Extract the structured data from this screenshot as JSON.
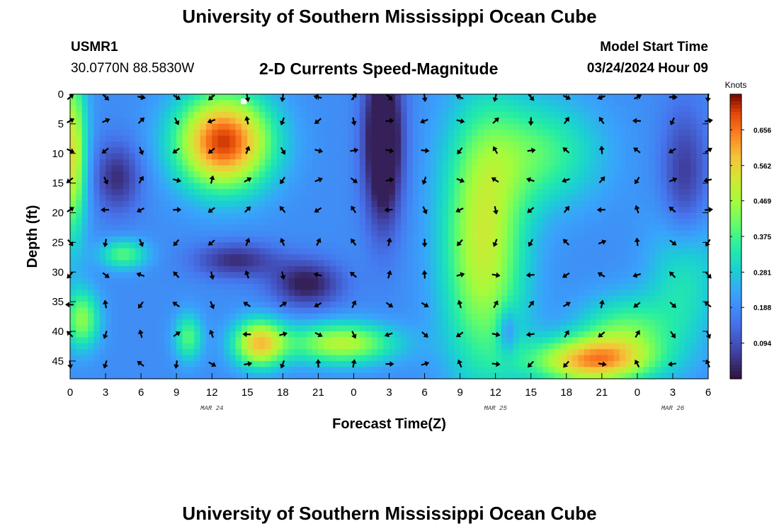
{
  "header": {
    "title": "University of Southern Mississippi Ocean Cube",
    "station": "USMR1",
    "coords": "30.0770N  88.5830W",
    "subtitle": "2-D Currents Speed-Magnitude",
    "model_start_label": "Model Start Time",
    "model_start_value": "03/24/2024 Hour 09"
  },
  "footer": {
    "title": "University of Southern Mississippi Ocean Cube"
  },
  "chart_data": {
    "type": "heatmap",
    "title": "2-D Currents Speed-Magnitude",
    "xlabel": "Forecast Time(Z)",
    "ylabel": "Depth (ft)",
    "x_ticks": [
      "0",
      "3",
      "6",
      "9",
      "12",
      "15",
      "18",
      "21",
      "0",
      "3",
      "6",
      "9",
      "12",
      "15",
      "18",
      "21",
      "0",
      "3",
      "6"
    ],
    "x_range_hours": [
      0,
      54
    ],
    "day_labels": [
      {
        "label": "MAR 24",
        "hour": 12
      },
      {
        "label": "MAR 25",
        "hour": 36
      },
      {
        "label": "MAR 26",
        "hour": 51
      }
    ],
    "y_ticks": [
      "0",
      "5",
      "10",
      "15",
      "20",
      "25",
      "30",
      "35",
      "40",
      "45"
    ],
    "y_range_ft": [
      0,
      48
    ],
    "colorbar": {
      "unit": "Knots",
      "ticks": [
        "0.094",
        "0.188",
        "0.281",
        "0.375",
        "0.469",
        "0.562",
        "0.656"
      ],
      "range": [
        0.0,
        0.75
      ]
    },
    "speed_blobs": [
      {
        "t": 0.2,
        "d": 10,
        "st": 1.2,
        "sd": 14,
        "a": 0.35
      },
      {
        "t": 13,
        "d": 8,
        "st": 4.0,
        "sd": 8,
        "a": 0.52
      },
      {
        "t": 4.5,
        "d": 27,
        "st": 2.0,
        "sd": 2.5,
        "a": 0.2
      },
      {
        "t": 1,
        "d": 38,
        "st": 1.5,
        "sd": 5,
        "a": 0.25
      },
      {
        "t": 10,
        "d": 41,
        "st": 1.2,
        "sd": 4,
        "a": 0.2
      },
      {
        "t": 16,
        "d": 42,
        "st": 2.2,
        "sd": 4,
        "a": 0.38
      },
      {
        "t": 23,
        "d": 42,
        "st": 4.5,
        "sd": 3.5,
        "a": 0.3
      },
      {
        "t": 35,
        "d": 25,
        "st": 3.5,
        "sd": 22,
        "a": 0.32
      },
      {
        "t": 40,
        "d": 10,
        "st": 5.0,
        "sd": 9,
        "a": 0.18
      },
      {
        "t": 44,
        "d": 45,
        "st": 5.0,
        "sd": 4,
        "a": 0.4
      },
      {
        "t": 47,
        "d": 40,
        "st": 4.0,
        "sd": 6,
        "a": 0.2
      },
      {
        "t": 52,
        "d": 30,
        "st": 3.0,
        "sd": 12,
        "a": 0.15
      },
      {
        "t": 26.5,
        "d": 8,
        "st": 1.6,
        "sd": 14,
        "a": -0.3
      },
      {
        "t": 4,
        "d": 14,
        "st": 2.0,
        "sd": 6,
        "a": -0.15
      },
      {
        "t": 14,
        "d": 28,
        "st": 3.5,
        "sd": 3,
        "a": -0.15
      },
      {
        "t": 20,
        "d": 32,
        "st": 3.0,
        "sd": 4,
        "a": -0.18
      },
      {
        "t": 52,
        "d": 15,
        "st": 2.0,
        "sd": 12,
        "a": -0.15
      },
      {
        "t": 37,
        "d": 40,
        "st": 0.8,
        "sd": 4,
        "a": -0.12
      }
    ],
    "arrow_grid": {
      "hours": [
        0,
        3,
        6,
        9,
        12,
        15,
        18,
        21,
        24,
        27,
        30,
        33,
        36,
        39,
        42,
        45,
        48,
        51,
        54
      ],
      "depths": [
        0.5,
        4.5,
        9.5,
        14.5,
        19.5,
        25,
        30.5,
        35.5,
        40.5,
        45.5
      ]
    },
    "marker": {
      "t": 14.7,
      "d": 0.5
    }
  }
}
